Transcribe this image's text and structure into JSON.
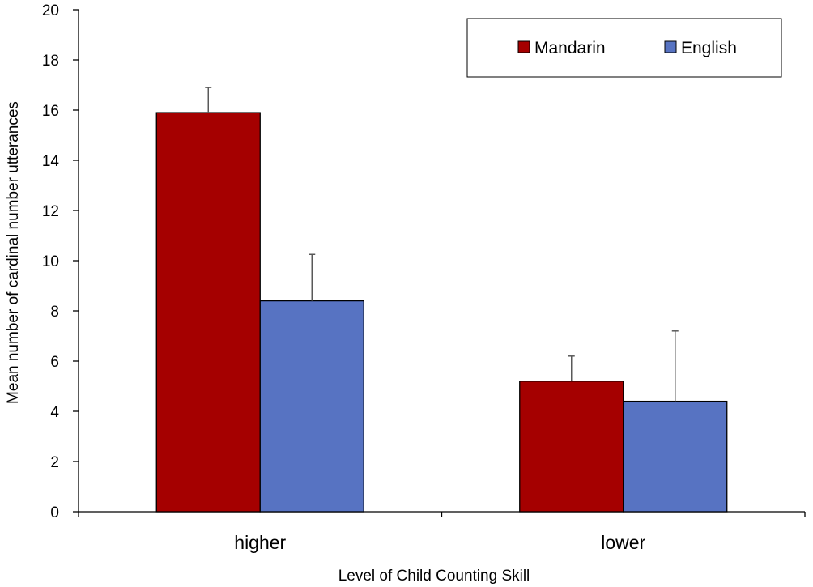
{
  "chart_data": {
    "type": "bar",
    "title": "",
    "xlabel": "Level of Child Counting Skill",
    "ylabel": "Mean number of cardinal number utterances",
    "categories": [
      "higher",
      "lower"
    ],
    "series": [
      {
        "name": "Mandarin",
        "color": "#A50000",
        "values": [
          15.9,
          5.2
        ],
        "error": [
          1.0,
          1.0
        ]
      },
      {
        "name": "English",
        "color": "#5773C2",
        "values": [
          8.4,
          4.4
        ],
        "error": [
          1.85,
          2.8
        ]
      }
    ],
    "ylim": [
      0,
      20
    ],
    "yticks": [
      "0",
      "2",
      "4",
      "6",
      "8",
      "10",
      "12",
      "14",
      "16",
      "18",
      "20"
    ],
    "legend_position": "top-right",
    "grid": false
  }
}
